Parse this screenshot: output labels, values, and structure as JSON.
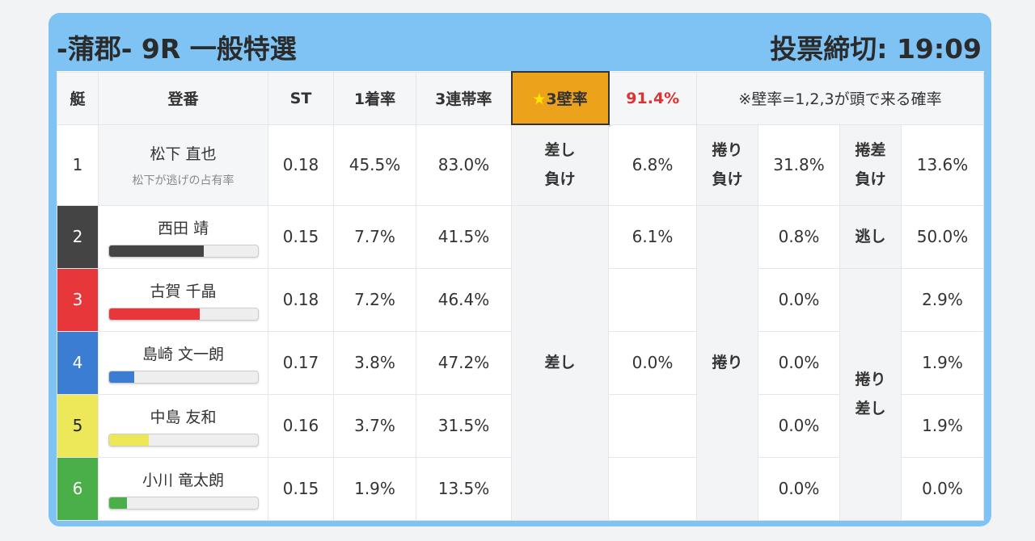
{
  "header": {
    "title": "-蒲郡- 9R 一般特選",
    "deadline": "投票締切: 19:09"
  },
  "columns": {
    "boat": "艇",
    "name": "登番",
    "st": "ST",
    "win": "1着率",
    "top3": "3連帯率",
    "wall_label": "★3壁率",
    "wall_star": "★",
    "wall_text": "3壁率",
    "wall_value": "91.4%",
    "note": "※壁率=1,2,3が頭で来る確率"
  },
  "colors": {
    "frame": "#7fc3f4",
    "accent": "#eda21b",
    "value_red": "#dd3333"
  },
  "boats": [
    {
      "no": "1",
      "name": "松下 直也",
      "sub": "松下が逃げの占有率",
      "st": "0.18",
      "win": "45.5%",
      "top3": "83.0%",
      "color": "#ffffff"
    },
    {
      "no": "2",
      "name": "西田 靖",
      "st": "0.15",
      "win": "7.7%",
      "top3": "41.5%",
      "color": "#444444",
      "bar": 0.64
    },
    {
      "no": "3",
      "name": "古賀 千晶",
      "st": "0.18",
      "win": "7.2%",
      "top3": "46.4%",
      "color": "#e8373b",
      "bar": 0.61
    },
    {
      "no": "4",
      "name": "島崎 文一朗",
      "st": "0.17",
      "win": "3.8%",
      "top3": "47.2%",
      "color": "#3b7dd3",
      "bar": 0.17
    },
    {
      "no": "5",
      "name": "中島 友和",
      "st": "0.16",
      "win": "3.7%",
      "top3": "31.5%",
      "color": "#ece85a",
      "bar": 0.27
    },
    {
      "no": "6",
      "name": "小川 竜太朗",
      "st": "0.15",
      "win": "1.9%",
      "top3": "13.5%",
      "color": "#4aae49",
      "bar": 0.12
    }
  ],
  "patterns": {
    "row1": {
      "a_label_1": "差し",
      "a_label_2": "負け",
      "a_value": "6.8%",
      "b_label_1": "捲り",
      "b_label_2": "負け",
      "b_value": "31.8%",
      "c_label_1": "捲差",
      "c_label_2": "負け",
      "c_value": "13.6%"
    },
    "sashi_label": "差し",
    "makuri_label": "捲り",
    "nige_label": "逃し",
    "makurizashi_label_1": "捲り",
    "makurizashi_label_2": "差し",
    "sashi_values": [
      "6.1%",
      "",
      "0.0%",
      "",
      ""
    ],
    "makuri_values": [
      "0.8%",
      "0.0%",
      "0.0%",
      "0.0%",
      "0.0%"
    ],
    "right_values": [
      "50.0%",
      "2.9%",
      "1.9%",
      "1.9%",
      "0.0%"
    ]
  }
}
